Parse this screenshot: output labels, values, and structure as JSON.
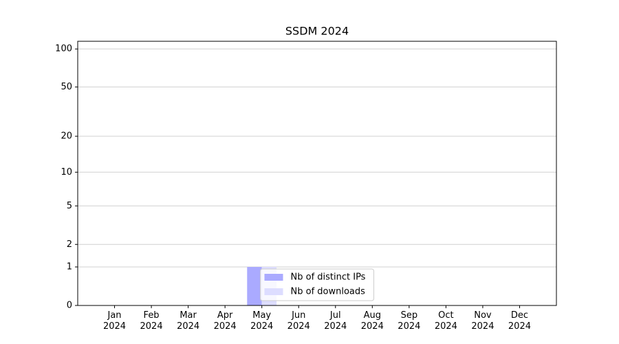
{
  "chart_data": {
    "type": "bar",
    "title": "SSDM 2024",
    "categories": [
      "Jan\n2024",
      "Feb\n2024",
      "Mar\n2024",
      "Apr\n2024",
      "May\n2024",
      "Jun\n2024",
      "Jul\n2024",
      "Aug\n2024",
      "Sep\n2024",
      "Oct\n2024",
      "Nov\n2024",
      "Dec\n2024"
    ],
    "series": [
      {
        "name": "Nb of distinct IPs",
        "color": "#aaaaff",
        "values": [
          0,
          0,
          0,
          0,
          1,
          0,
          0,
          0,
          0,
          0,
          0,
          0
        ]
      },
      {
        "name": "Nb of downloads",
        "color": "#ddddff",
        "values": [
          0,
          0,
          0,
          0,
          1,
          0,
          0,
          0,
          0,
          0,
          0,
          0
        ]
      }
    ],
    "y_scale": "log1p",
    "ylim": [
      0,
      115
    ],
    "yticks": [
      0,
      1,
      2,
      5,
      10,
      20,
      50,
      100
    ],
    "grid": true,
    "legend": "lower center"
  }
}
